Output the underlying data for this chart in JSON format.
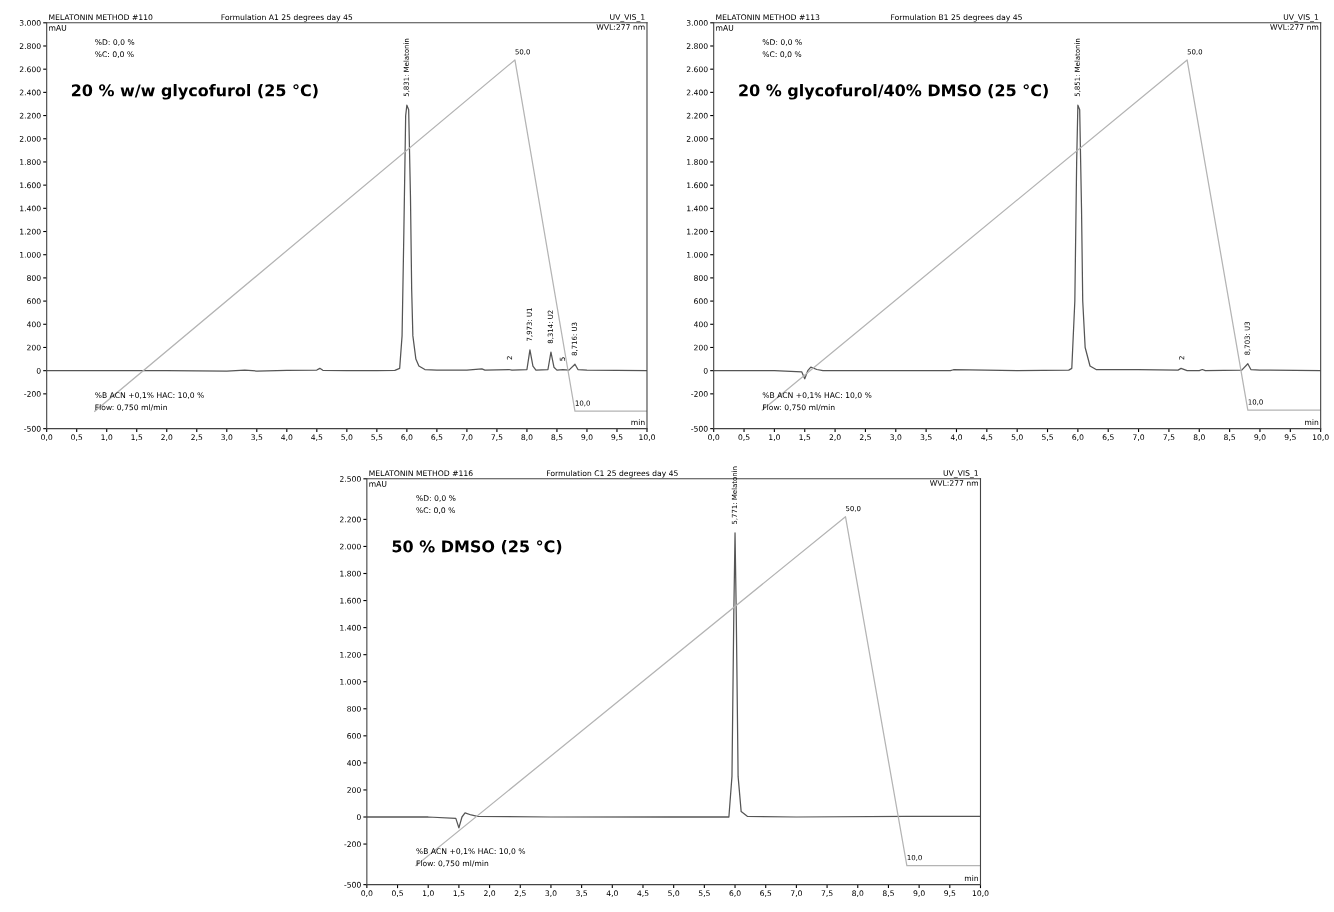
{
  "chart_data": [
    {
      "type": "line",
      "title": "Formulation A1 25 degrees day 45",
      "subtitle": "20 % w/w glycofurol (25 °C)",
      "xlabel": "min",
      "ylabel": "mAU",
      "annotations": [
        "MELATONIN METHOD #110",
        "UV_VIS_1",
        "WVL:277 nm",
        "%D: 0,0 %",
        "%C: 0,0 %",
        "%B ACN +0,1% HAC: 10,0 %",
        "Flow: 0,750 ml/min",
        {
          "text": "5,831: Melatonin",
          "x": 6.0,
          "y": 2290
        },
        {
          "text": "2",
          "x": 7.72,
          "y": 20
        },
        {
          "text": "7,973: U1",
          "x": 8.05,
          "y": 180
        },
        {
          "text": "8,314: U2",
          "x": 8.4,
          "y": 160
        },
        {
          "text": "5",
          "x": 8.6,
          "y": 10
        },
        {
          "text": "8,716: U3",
          "x": 8.8,
          "y": 55
        },
        {
          "text": "50,0",
          "x": 7.8,
          "y": 2680
        },
        {
          "text": "10,0",
          "x": 8.8,
          "y": -350
        }
      ],
      "series": [
        {
          "color": "#555555",
          "x": [
            0,
            0.5,
            1,
            2,
            3,
            3.3,
            3.5,
            4,
            4.5,
            4.55,
            4.6,
            5,
            5.5,
            5.8,
            5.88,
            5.92,
            5.95,
            5.98,
            6.0,
            6.03,
            6.06,
            6.08,
            6.1,
            6.15,
            6.2,
            6.3,
            6.5,
            7,
            7.25,
            7.3,
            7.7,
            7.75,
            8.0,
            8.05,
            8.1,
            8.15,
            8.35,
            8.4,
            8.45,
            8.5,
            8.6,
            8.7,
            8.8,
            8.85,
            9.0,
            10
          ],
          "values": [
            0,
            0,
            0,
            0,
            -5,
            5,
            -3,
            3,
            5,
            20,
            3,
            0,
            0,
            2,
            20,
            300,
            1200,
            2200,
            2290,
            2250,
            1500,
            700,
            300,
            100,
            40,
            10,
            5,
            5,
            15,
            5,
            10,
            5,
            10,
            180,
            40,
            5,
            10,
            160,
            30,
            5,
            10,
            5,
            55,
            10,
            5,
            0
          ]
        },
        {
          "color": "#b4b4b4",
          "x": [
            0.8,
            7.8,
            8.8,
            10
          ],
          "values": [
            -350,
            2680,
            -350,
            -350
          ]
        }
      ],
      "xlim": [
        0,
        10
      ],
      "ylim": [
        -500,
        3000
      ],
      "xticks": [
        {
          "value": 0,
          "label": "0,0"
        },
        {
          "value": 0.5,
          "label": "0,5"
        },
        {
          "value": 1,
          "label": "1,0"
        },
        {
          "value": 1.5,
          "label": "1,5"
        },
        {
          "value": 2,
          "label": "2,0"
        },
        {
          "value": 2.5,
          "label": "2,5"
        },
        {
          "value": 3,
          "label": "3,0"
        },
        {
          "value": 3.5,
          "label": "3,5"
        },
        {
          "value": 4,
          "label": "4,0"
        },
        {
          "value": 4.5,
          "label": "4,5"
        },
        {
          "value": 5,
          "label": "5,0"
        },
        {
          "value": 5.5,
          "label": "5,5"
        },
        {
          "value": 6,
          "label": "6,0"
        },
        {
          "value": 6.5,
          "label": "6,5"
        },
        {
          "value": 7,
          "label": "7,0"
        },
        {
          "value": 7.5,
          "label": "7,5"
        },
        {
          "value": 8,
          "label": "8,0"
        },
        {
          "value": 8.5,
          "label": "8,5"
        },
        {
          "value": 9,
          "label": "9,0"
        },
        {
          "value": 9.5,
          "label": "9,5"
        },
        {
          "value": 10,
          "label": "10,0"
        }
      ],
      "yticks": [
        -500,
        -200,
        0,
        200,
        400,
        600,
        800,
        {
          "value": 1000,
          "label": "1.000"
        },
        {
          "value": 1200,
          "label": "1.200"
        },
        {
          "value": 1400,
          "label": "1.400"
        },
        {
          "value": 1600,
          "label": "1.600"
        },
        {
          "value": 1800,
          "label": "1.800"
        },
        {
          "value": 2000,
          "label": "2.000"
        },
        {
          "value": 2200,
          "label": "2.200"
        },
        {
          "value": 2400,
          "label": "2.400"
        },
        {
          "value": 2600,
          "label": "2.600"
        },
        {
          "value": 2800,
          "label": "2.800"
        },
        {
          "value": 3000,
          "label": "3.000"
        }
      ]
    },
    {
      "type": "line",
      "title": "Formulation B1 25 degrees day 45",
      "subtitle": "20 % glycofurol/40% DMSO (25 °C)",
      "xlabel": "min",
      "ylabel": "mAU",
      "annotations": [
        "MELATONIN METHOD #113",
        "UV_VIS_1",
        "WVL:277 nm",
        "%D: 0,0 %",
        "%C: 0,0 %",
        "%B ACN +0,1% HAC: 10,0 %",
        "Flow: 0,750 ml/min",
        {
          "text": "5,851: Melatonin",
          "x": 6.0,
          "y": 2290
        },
        {
          "text": "2",
          "x": 7.72,
          "y": 20
        },
        {
          "text": "8,703: U3",
          "x": 8.8,
          "y": 60
        },
        {
          "text": "50,0",
          "x": 7.8,
          "y": 2680
        },
        {
          "text": "10,0",
          "x": 8.8,
          "y": -340
        }
      ],
      "series": [
        {
          "color": "#555555",
          "x": [
            0,
            1,
            1.45,
            1.5,
            1.55,
            1.6,
            1.7,
            1.8,
            3,
            3.9,
            3.95,
            5,
            5.85,
            5.9,
            5.95,
            5.98,
            6.0,
            6.03,
            6.06,
            6.08,
            6.12,
            6.2,
            6.3,
            7,
            7.65,
            7.7,
            7.8,
            8.0,
            8.05,
            8.1,
            8.7,
            8.8,
            8.85,
            9.0,
            10
          ],
          "values": [
            0,
            0,
            -10,
            -70,
            0,
            30,
            10,
            0,
            0,
            0,
            8,
            0,
            5,
            20,
            600,
            1800,
            2290,
            2250,
            1400,
            600,
            200,
            40,
            10,
            8,
            5,
            20,
            0,
            0,
            10,
            0,
            5,
            60,
            10,
            5,
            0
          ]
        },
        {
          "color": "#b4b4b4",
          "x": [
            0.8,
            7.8,
            8.8,
            10
          ],
          "values": [
            -340,
            2680,
            -340,
            -340
          ]
        }
      ],
      "xlim": [
        0,
        10
      ],
      "ylim": [
        -500,
        3000
      ],
      "xticks": [
        {
          "value": 0,
          "label": "0,0"
        },
        {
          "value": 0.5,
          "label": "0,5"
        },
        {
          "value": 1,
          "label": "1,0"
        },
        {
          "value": 1.5,
          "label": "1,5"
        },
        {
          "value": 2,
          "label": "2,0"
        },
        {
          "value": 2.5,
          "label": "2,5"
        },
        {
          "value": 3,
          "label": "3,0"
        },
        {
          "value": 3.5,
          "label": "3,5"
        },
        {
          "value": 4,
          "label": "4,0"
        },
        {
          "value": 4.5,
          "label": "4,5"
        },
        {
          "value": 5,
          "label": "5,0"
        },
        {
          "value": 5.5,
          "label": "5,5"
        },
        {
          "value": 6,
          "label": "6,0"
        },
        {
          "value": 6.5,
          "label": "6,5"
        },
        {
          "value": 7,
          "label": "7,0"
        },
        {
          "value": 7.5,
          "label": "7,5"
        },
        {
          "value": 8,
          "label": "8,0"
        },
        {
          "value": 8.5,
          "label": "8,5"
        },
        {
          "value": 9,
          "label": "9,0"
        },
        {
          "value": 9.5,
          "label": "9,5"
        },
        {
          "value": 10,
          "label": "10,0"
        }
      ],
      "yticks": [
        -500,
        -200,
        0,
        200,
        400,
        600,
        800,
        {
          "value": 1000,
          "label": "1.000"
        },
        {
          "value": 1200,
          "label": "1.200"
        },
        {
          "value": 1400,
          "label": "1.400"
        },
        {
          "value": 1600,
          "label": "1.600"
        },
        {
          "value": 1800,
          "label": "1.800"
        },
        {
          "value": 2000,
          "label": "2.000"
        },
        {
          "value": 2200,
          "label": "2.200"
        },
        {
          "value": 2400,
          "label": "2.400"
        },
        {
          "value": 2600,
          "label": "2.600"
        },
        {
          "value": 2800,
          "label": "2.800"
        },
        {
          "value": 3000,
          "label": "3.000"
        }
      ]
    },
    {
      "type": "line",
      "title": "Formulation C1 25 degrees day 45",
      "subtitle": "50 % DMSO (25 °C)",
      "xlabel": "min",
      "ylabel": "mAU",
      "annotations": [
        "MELATONIN METHOD #116",
        "UV_VIS_1",
        "WVL:277 nm",
        "%D: 0,0 %",
        "%C: 0,0 %",
        "%B ACN +0,1% HAC: 10,0 %",
        "Flow: 0,750 ml/min",
        {
          "text": "5,771: Melatonin",
          "x": 6.0,
          "y": 2100
        },
        {
          "text": "50,0",
          "x": 7.8,
          "y": 2220
        },
        {
          "text": "10,0",
          "x": 8.8,
          "y": -360
        }
      ],
      "series": [
        {
          "color": "#555555",
          "x": [
            0,
            1,
            1.45,
            1.5,
            1.55,
            1.6,
            1.7,
            1.8,
            3,
            5,
            5.9,
            5.95,
            5.98,
            6.0,
            6.02,
            6.05,
            6.1,
            6.2,
            7,
            8.8,
            10
          ],
          "values": [
            0,
            0,
            -10,
            -80,
            0,
            30,
            15,
            5,
            0,
            0,
            0,
            300,
            1500,
            2100,
            1500,
            300,
            40,
            5,
            0,
            5,
            5
          ]
        },
        {
          "color": "#b4b4b4",
          "x": [
            0.8,
            7.8,
            8.8,
            10
          ],
          "values": [
            -360,
            2220,
            -360,
            -360
          ]
        }
      ],
      "xlim": [
        0,
        10
      ],
      "ylim": [
        -500,
        2500
      ],
      "xticks": [
        {
          "value": 0,
          "label": "0,0"
        },
        {
          "value": 0.5,
          "label": "0,5"
        },
        {
          "value": 1,
          "label": "1,0"
        },
        {
          "value": 1.5,
          "label": "1,5"
        },
        {
          "value": 2,
          "label": "2,0"
        },
        {
          "value": 2.5,
          "label": "2,5"
        },
        {
          "value": 3,
          "label": "3,0"
        },
        {
          "value": 3.5,
          "label": "3,5"
        },
        {
          "value": 4,
          "label": "4,0"
        },
        {
          "value": 4.5,
          "label": "4,5"
        },
        {
          "value": 5,
          "label": "5,0"
        },
        {
          "value": 5.5,
          "label": "5,5"
        },
        {
          "value": 6,
          "label": "6,0"
        },
        {
          "value": 6.5,
          "label": "6,5"
        },
        {
          "value": 7,
          "label": "7,0"
        },
        {
          "value": 7.5,
          "label": "7,5"
        },
        {
          "value": 8,
          "label": "8,0"
        },
        {
          "value": 8.5,
          "label": "8,5"
        },
        {
          "value": 9,
          "label": "9,0"
        },
        {
          "value": 9.5,
          "label": "9,5"
        },
        {
          "value": 10,
          "label": "10,0"
        }
      ],
      "yticks": [
        -500,
        -200,
        0,
        200,
        400,
        600,
        800,
        {
          "value": 1000,
          "label": "1.000"
        },
        {
          "value": 1200,
          "label": "1.200"
        },
        {
          "value": 1400,
          "label": "1.400"
        },
        {
          "value": 1600,
          "label": "1.600"
        },
        {
          "value": 1800,
          "label": "1.800"
        },
        {
          "value": 2000,
          "label": "2.000"
        },
        {
          "value": 2200,
          "label": "2.200"
        },
        {
          "value": 2500,
          "label": "2.500"
        }
      ]
    }
  ]
}
